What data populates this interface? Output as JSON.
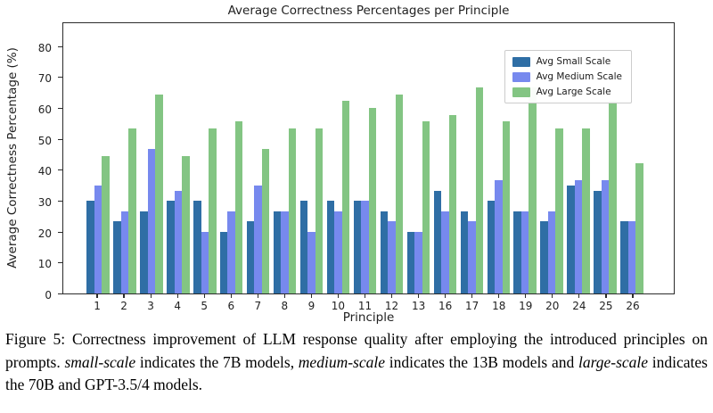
{
  "chart_data": {
    "type": "bar",
    "title": "Average Correctness Percentages per Principle",
    "xlabel": "Principle",
    "ylabel": "Average Correctness Percentage (%)",
    "ylim": [
      0,
      88
    ],
    "yticks": [
      0,
      10,
      20,
      30,
      40,
      50,
      60,
      70,
      80
    ],
    "grid": false,
    "legend_position": "upper right",
    "categories": [
      "1",
      "2",
      "3",
      "4",
      "5",
      "6",
      "7",
      "8",
      "9",
      "10",
      "11",
      "12",
      "13",
      "16",
      "17",
      "18",
      "19",
      "20",
      "24",
      "25",
      "26"
    ],
    "series": [
      {
        "name": "Avg Small Scale",
        "color": "#2f6ea5",
        "values": [
          30,
          23.3,
          26.7,
          30,
          30,
          20,
          23.3,
          26.7,
          30,
          30,
          30,
          26.7,
          20,
          33.3,
          26.7,
          30,
          26.7,
          23.3,
          35,
          33.3,
          23.3
        ]
      },
      {
        "name": "Avg Medium Scale",
        "color": "#7789ee",
        "values": [
          35,
          26.7,
          46.7,
          33.3,
          20,
          26.7,
          35,
          26.7,
          20,
          26.7,
          30,
          23.3,
          20,
          26.7,
          23.3,
          36.7,
          26.7,
          26.7,
          36.7,
          36.7,
          23.3
        ]
      },
      {
        "name": "Avg Large Scale",
        "color": "#83c583",
        "values": [
          44.4,
          53.3,
          64.4,
          44.4,
          53.3,
          55.6,
          46.7,
          53.3,
          53.3,
          62.2,
          60,
          64.4,
          55.6,
          57.8,
          66.7,
          55.6,
          66.7,
          53.3,
          53.3,
          62.2,
          42.2
        ]
      }
    ]
  },
  "caption": {
    "segments": [
      {
        "text": "Figure 5:  Correctness improvement of LLM response quality after employing the introduced principles on prompts. ",
        "italic": false
      },
      {
        "text": "small-scale",
        "italic": true
      },
      {
        "text": " indicates the 7B models, ",
        "italic": false
      },
      {
        "text": "medium-scale",
        "italic": true
      },
      {
        "text": " indicates the 13B models and ",
        "italic": false
      },
      {
        "text": "large-scale",
        "italic": true
      },
      {
        "text": " indicates the 70B and GPT-3.5/4 models.",
        "italic": false
      }
    ]
  }
}
